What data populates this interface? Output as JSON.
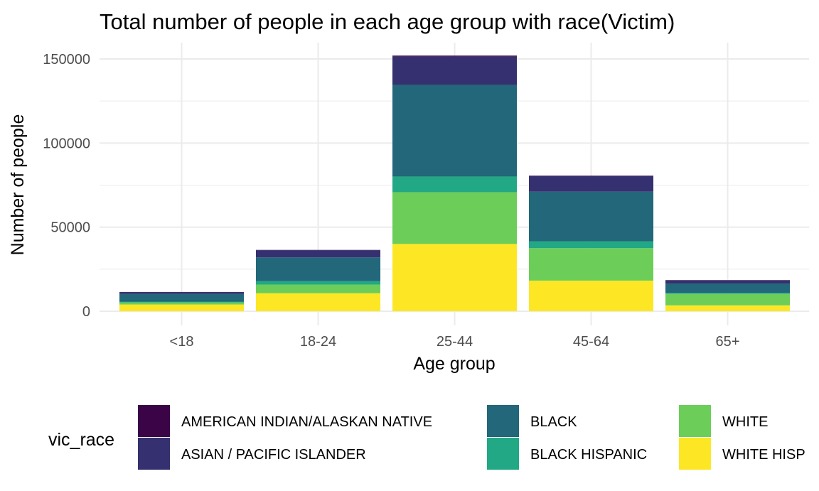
{
  "chart_data": {
    "type": "bar",
    "stacked": true,
    "title": "Total number of people in each age group with race(Victim)",
    "xlabel": "Age group",
    "ylabel": "Number of people",
    "categories": [
      "<18",
      "18-24",
      "25-44",
      "45-64",
      "65+"
    ],
    "ylim": [
      0,
      152000
    ],
    "yticks": [
      0,
      50000,
      100000,
      150000
    ],
    "grid": true,
    "legend": {
      "title": "vic_race",
      "position": "bottom",
      "columns": 3
    },
    "series": [
      {
        "name": "WHITE HISP",
        "color": "#FDE725",
        "values": [
          4000,
          10700,
          40000,
          18200,
          3500
        ]
      },
      {
        "name": "WHITE",
        "color": "#6CCE59",
        "values": [
          1200,
          5100,
          30800,
          19300,
          6800
        ]
      },
      {
        "name": "BLACK HISPANIC",
        "color": "#22A884",
        "values": [
          500,
          2100,
          9300,
          4100,
          600
        ]
      },
      {
        "name": "BLACK",
        "color": "#22677A",
        "values": [
          4600,
          14100,
          54500,
          29500,
          5600
        ]
      },
      {
        "name": "ASIAN / PACIFIC ISLANDER",
        "color": "#35306F",
        "values": [
          1100,
          4300,
          16800,
          9200,
          1900
        ]
      },
      {
        "name": "AMERICAN INDIAN/ALASKAN NATIVE",
        "color": "#3B0447",
        "values": [
          50,
          150,
          600,
          300,
          100
        ]
      }
    ]
  }
}
